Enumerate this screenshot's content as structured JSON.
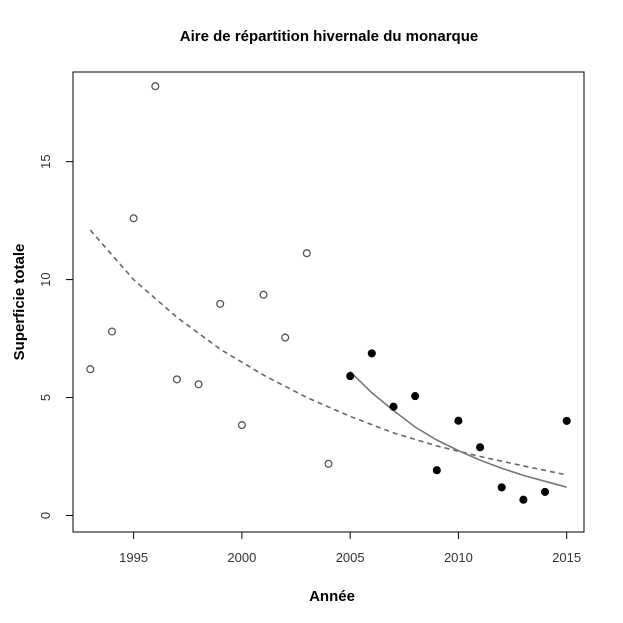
{
  "chart_data": {
    "type": "scatter",
    "title": "Aire de répartition hivernale du monarque",
    "xlabel": "Année",
    "ylabel": "Superficie totale",
    "xlim": [
      1992.2,
      2015.8
    ],
    "ylim": [
      -0.7,
      18.8
    ],
    "xticks": [
      1995,
      2000,
      2005,
      2010,
      2015
    ],
    "yticks": [
      0,
      5,
      10,
      15
    ],
    "grid": false,
    "legend": "none",
    "colors": {
      "axis": "#000000",
      "open_points": "#555555",
      "filled_points": "#000000",
      "solid_curve": "#777777",
      "dashed_curve": "#666666"
    },
    "series": [
      {
        "marker": "open-circle",
        "x": [
          1993,
          1994,
          1995,
          1996,
          1997,
          1998,
          1999,
          2000,
          2001,
          2002,
          2003,
          2004
        ],
        "y": [
          6.2,
          7.8,
          12.6,
          18.2,
          5.77,
          5.56,
          8.97,
          3.83,
          9.36,
          7.54,
          11.12,
          2.19
        ]
      },
      {
        "marker": "filled-circle",
        "x": [
          2005,
          2006,
          2007,
          2008,
          2009,
          2010,
          2011,
          2012,
          2013,
          2014,
          2015
        ],
        "y": [
          5.91,
          6.87,
          4.61,
          5.06,
          1.92,
          4.02,
          2.89,
          1.19,
          0.67,
          1.0,
          4.01
        ]
      },
      {
        "marker": "dashed-line",
        "x": [
          1993,
          1995,
          1997,
          1999,
          2001,
          2003,
          2005,
          2007,
          2009,
          2011,
          2013,
          2015
        ],
        "y": [
          12.1,
          10.0,
          8.4,
          7.05,
          5.95,
          5.0,
          4.2,
          3.5,
          2.95,
          2.5,
          2.1,
          1.72
        ]
      },
      {
        "marker": "solid-line",
        "x": [
          2005,
          2006,
          2007,
          2008,
          2009,
          2010,
          2011,
          2012,
          2013,
          2014,
          2015
        ],
        "y": [
          6.1,
          5.2,
          4.45,
          3.75,
          3.2,
          2.75,
          2.35,
          2.0,
          1.7,
          1.45,
          1.2
        ]
      }
    ]
  }
}
